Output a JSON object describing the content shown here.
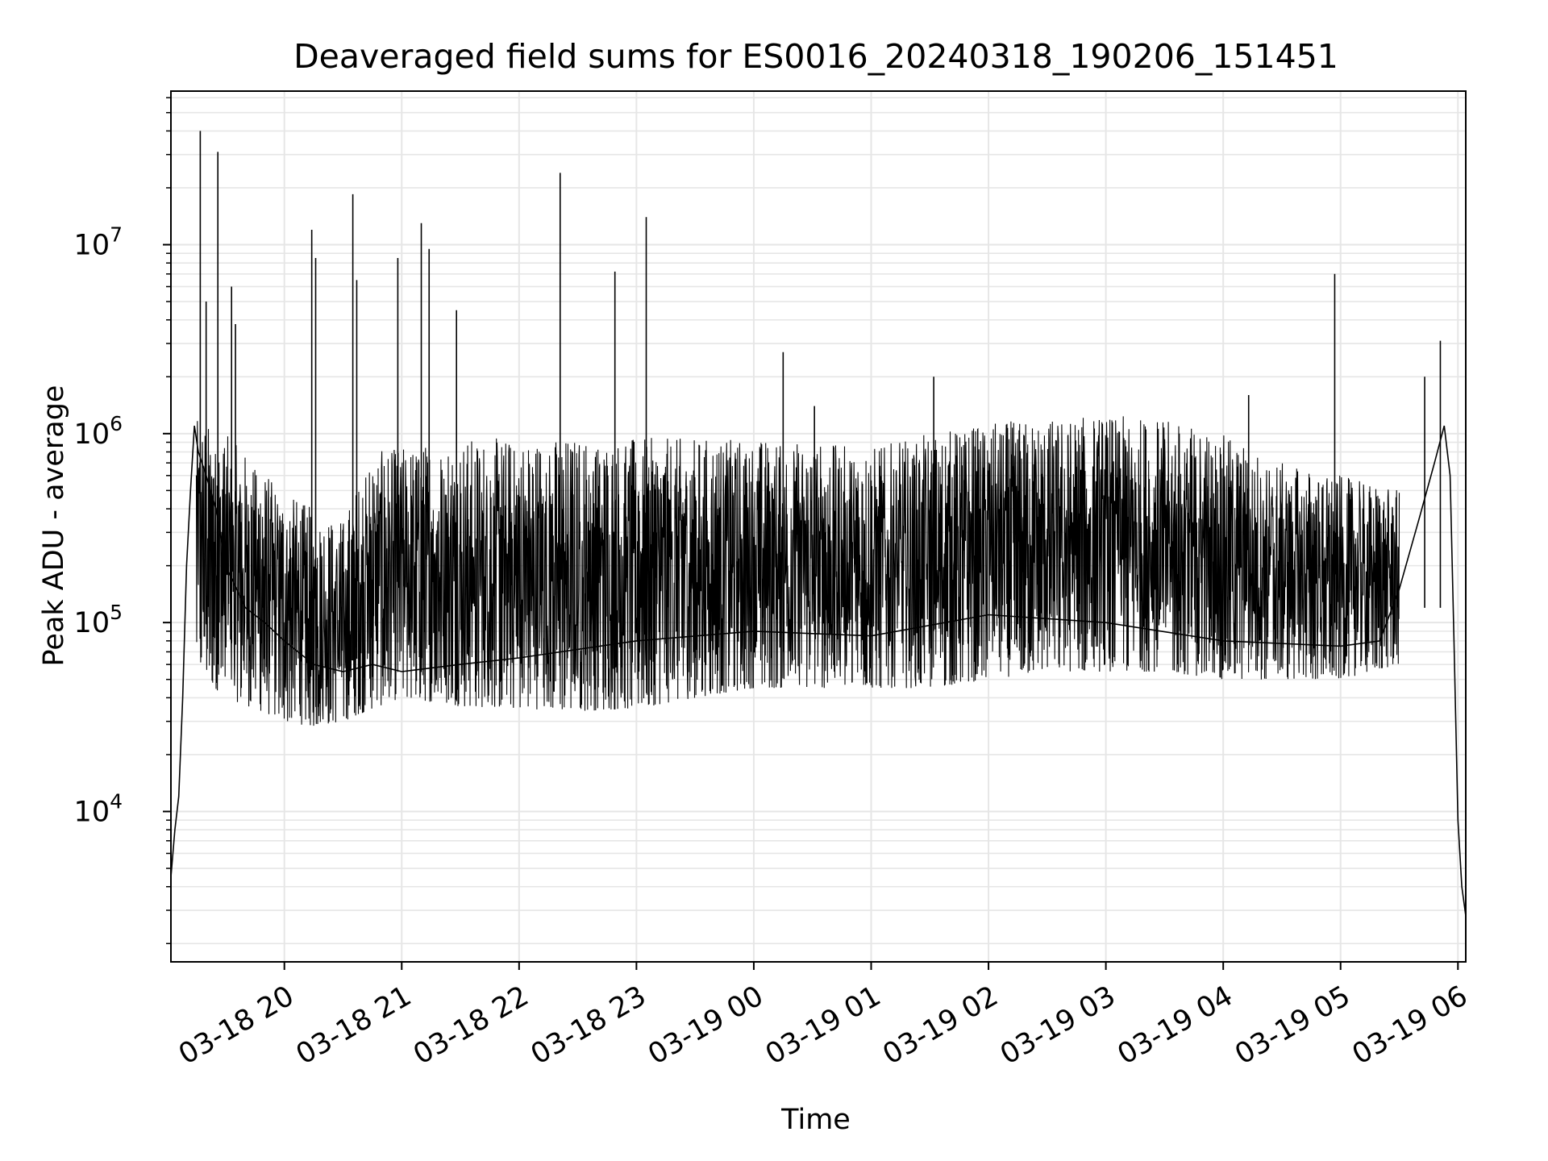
{
  "chart_data": {
    "type": "line",
    "title": "Deaveraged field sums for ES0016_20240318_190206_151451",
    "xlabel": "Time",
    "ylabel": "Peak ADU - average",
    "yscale": "log",
    "grid": true,
    "line_color": "#000000",
    "grid_color": "#e6e6e6",
    "xlim": [
      "2024-03-18 19:02",
      "2024-03-19 06:04"
    ],
    "ylim": [
      1600,
      65000000
    ],
    "x_ticks": [
      {
        "value": "2024-03-18 20:00",
        "label": "03-18 20"
      },
      {
        "value": "2024-03-18 21:00",
        "label": "03-18 21"
      },
      {
        "value": "2024-03-18 22:00",
        "label": "03-18 22"
      },
      {
        "value": "2024-03-18 23:00",
        "label": "03-18 23"
      },
      {
        "value": "2024-03-19 00:00",
        "label": "03-19 00"
      },
      {
        "value": "2024-03-19 01:00",
        "label": "03-19 01"
      },
      {
        "value": "2024-03-19 02:00",
        "label": "03-19 02"
      },
      {
        "value": "2024-03-19 03:00",
        "label": "03-19 03"
      },
      {
        "value": "2024-03-19 04:00",
        "label": "03-19 04"
      },
      {
        "value": "2024-03-19 05:00",
        "label": "03-19 05"
      },
      {
        "value": "2024-03-19 06:00",
        "label": "03-19 06"
      }
    ],
    "y_ticks": [
      {
        "value": 10000,
        "base": "10",
        "exp": "4"
      },
      {
        "value": 100000,
        "base": "10",
        "exp": "5"
      },
      {
        "value": 1000000,
        "base": "10",
        "exp": "6"
      },
      {
        "value": 10000000,
        "base": "10",
        "exp": "7"
      }
    ],
    "series": [
      {
        "points": [
          [
            "2024-03-18 19:02",
            4500
          ],
          [
            "2024-03-18 19:04",
            8000
          ],
          [
            "2024-03-18 19:06",
            12000
          ],
          [
            "2024-03-18 19:08",
            40000
          ],
          [
            "2024-03-18 19:10",
            200000
          ],
          [
            "2024-03-18 19:12",
            500000
          ],
          [
            "2024-03-18 19:14",
            1100000
          ],
          [
            "2024-03-18 19:16",
            800000
          ],
          [
            "2024-03-18 19:20",
            600000
          ],
          [
            "2024-03-18 19:25",
            400000
          ],
          [
            "2024-03-18 19:30",
            200000
          ],
          [
            "2024-03-18 19:40",
            120000
          ],
          [
            "2024-03-18 19:50",
            100000
          ],
          [
            "2024-03-18 20:00",
            80000
          ],
          [
            "2024-03-18 20:15",
            60000
          ],
          [
            "2024-03-18 20:30",
            55000
          ],
          [
            "2024-03-18 20:45",
            60000
          ],
          [
            "2024-03-18 21:00",
            55000
          ],
          [
            "2024-03-18 21:30",
            60000
          ],
          [
            "2024-03-18 22:00",
            65000
          ],
          [
            "2024-03-18 23:00",
            80000
          ],
          [
            "2024-03-19 00:00",
            90000
          ],
          [
            "2024-03-19 01:00",
            85000
          ],
          [
            "2024-03-19 02:00",
            110000
          ],
          [
            "2024-03-19 03:00",
            100000
          ],
          [
            "2024-03-19 04:00",
            80000
          ],
          [
            "2024-03-19 05:00",
            75000
          ],
          [
            "2024-03-19 05:20",
            80000
          ],
          [
            "2024-03-19 05:30",
            150000
          ],
          [
            "2024-03-19 05:40",
            350000
          ],
          [
            "2024-03-19 05:48",
            700000
          ],
          [
            "2024-03-19 05:53",
            1100000
          ],
          [
            "2024-03-19 05:56",
            600000
          ],
          [
            "2024-03-19 05:58",
            80000
          ],
          [
            "2024-03-19 06:00",
            9000
          ],
          [
            "2024-03-19 06:02",
            4000
          ],
          [
            "2024-03-19 06:04",
            2800
          ]
        ],
        "envelope": [
          [
            "2024-03-18 19:15",
            55000,
            1200000
          ],
          [
            "2024-03-18 19:30",
            40000,
            1000000
          ],
          [
            "2024-03-18 19:45",
            35000,
            700000
          ],
          [
            "2024-03-18 20:00",
            30000,
            500000
          ],
          [
            "2024-03-18 20:15",
            28000,
            400000
          ],
          [
            "2024-03-18 20:30",
            30000,
            350000
          ],
          [
            "2024-03-18 20:45",
            35000,
            800000
          ],
          [
            "2024-03-18 21:00",
            40000,
            850000
          ],
          [
            "2024-03-18 21:15",
            38000,
            900000
          ],
          [
            "2024-03-18 21:30",
            36000,
            950000
          ],
          [
            "2024-03-18 22:00",
            35000,
            950000
          ],
          [
            "2024-03-18 22:30",
            34000,
            960000
          ],
          [
            "2024-03-18 23:00",
            35000,
            950000
          ],
          [
            "2024-03-18 23:30",
            40000,
            950000
          ],
          [
            "2024-03-19 00:00",
            45000,
            950000
          ],
          [
            "2024-03-19 00:30",
            45000,
            900000
          ],
          [
            "2024-03-19 01:00",
            45000,
            850000
          ],
          [
            "2024-03-19 01:30",
            45000,
            1000000
          ],
          [
            "2024-03-19 02:00",
            50000,
            1150000
          ],
          [
            "2024-03-19 02:30",
            55000,
            1200000
          ],
          [
            "2024-03-19 03:00",
            55000,
            1250000
          ],
          [
            "2024-03-19 03:30",
            55000,
            1200000
          ],
          [
            "2024-03-19 04:00",
            50000,
            1000000
          ],
          [
            "2024-03-19 04:30",
            50000,
            700000
          ],
          [
            "2024-03-19 05:00",
            50000,
            600000
          ],
          [
            "2024-03-19 05:30",
            60000,
            500000
          ]
        ],
        "spikes": [
          [
            "2024-03-18 19:17",
            40000000
          ],
          [
            "2024-03-18 19:20",
            5000000
          ],
          [
            "2024-03-18 19:26",
            31000000
          ],
          [
            "2024-03-18 19:33",
            6000000
          ],
          [
            "2024-03-18 19:35",
            3800000
          ],
          [
            "2024-03-18 20:14",
            12000000
          ],
          [
            "2024-03-18 20:16",
            8500000
          ],
          [
            "2024-03-18 20:35",
            18500000
          ],
          [
            "2024-03-18 20:37",
            6500000
          ],
          [
            "2024-03-18 20:58",
            8500000
          ],
          [
            "2024-03-18 21:10",
            13000000
          ],
          [
            "2024-03-18 21:14",
            9500000
          ],
          [
            "2024-03-18 21:28",
            4500000
          ],
          [
            "2024-03-18 22:21",
            24000000
          ],
          [
            "2024-03-18 22:49",
            7200000
          ],
          [
            "2024-03-18 23:05",
            14000000
          ],
          [
            "2024-03-19 00:15",
            2700000
          ],
          [
            "2024-03-19 00:31",
            1400000
          ],
          [
            "2024-03-19 01:32",
            2000000
          ],
          [
            "2024-03-19 04:13",
            1600000
          ],
          [
            "2024-03-19 04:57",
            7000000
          ],
          [
            "2024-03-19 05:43",
            2000000
          ],
          [
            "2024-03-19 05:51",
            3100000
          ]
        ]
      }
    ]
  }
}
